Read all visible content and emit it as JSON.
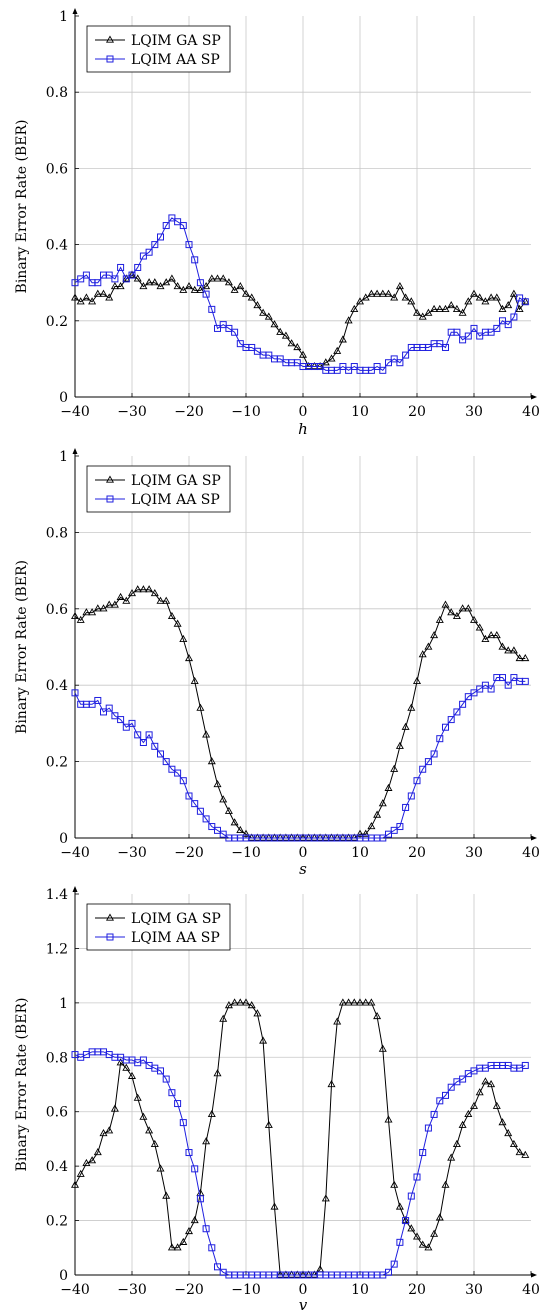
{
  "chart_data": [
    {
      "type": "line",
      "xlabel": "h",
      "ylabel": "Binary Error Rate (BER)",
      "xlim": [
        -40,
        40
      ],
      "ylim": [
        0,
        1
      ],
      "xticks": [
        -40,
        -30,
        -20,
        -10,
        0,
        10,
        20,
        30,
        40
      ],
      "yticks": [
        0,
        0.2,
        0.4,
        0.6,
        0.8,
        1
      ],
      "ytick_labels": [
        "0",
        "0.2",
        "0.4",
        "0.6",
        "0.8",
        "1"
      ],
      "grid": true,
      "legend_position": "top-left",
      "series": [
        {
          "name": "LQIM GA SP",
          "color": "#000000",
          "marker": "triangle",
          "x": [
            -40,
            -39,
            -38,
            -37,
            -36,
            -35,
            -34,
            -33,
            -32,
            -31,
            -30,
            -29,
            -28,
            -27,
            -26,
            -25,
            -24,
            -23,
            -22,
            -21,
            -20,
            -19,
            -18,
            -17,
            -16,
            -15,
            -14,
            -13,
            -12,
            -11,
            -10,
            -9,
            -8,
            -7,
            -6,
            -5,
            -4,
            -3,
            -2,
            -1,
            0,
            1,
            2,
            3,
            4,
            5,
            6,
            7,
            8,
            9,
            10,
            11,
            12,
            13,
            14,
            15,
            16,
            17,
            18,
            19,
            20,
            21,
            22,
            23,
            24,
            25,
            26,
            27,
            28,
            29,
            30,
            31,
            32,
            33,
            34,
            35,
            36,
            37,
            38,
            39
          ],
          "y": [
            0.26,
            0.25,
            0.26,
            0.25,
            0.27,
            0.27,
            0.26,
            0.29,
            0.29,
            0.31,
            0.32,
            0.31,
            0.29,
            0.3,
            0.3,
            0.29,
            0.3,
            0.31,
            0.29,
            0.28,
            0.29,
            0.28,
            0.28,
            0.29,
            0.31,
            0.31,
            0.31,
            0.3,
            0.28,
            0.29,
            0.27,
            0.26,
            0.24,
            0.22,
            0.21,
            0.19,
            0.17,
            0.16,
            0.14,
            0.13,
            0.11,
            0.08,
            0.08,
            0.08,
            0.09,
            0.1,
            0.12,
            0.15,
            0.2,
            0.23,
            0.25,
            0.26,
            0.27,
            0.27,
            0.27,
            0.27,
            0.26,
            0.29,
            0.26,
            0.25,
            0.22,
            0.21,
            0.22,
            0.23,
            0.23,
            0.23,
            0.24,
            0.23,
            0.22,
            0.25,
            0.27,
            0.26,
            0.25,
            0.26,
            0.26,
            0.23,
            0.24,
            0.27,
            0.23,
            0.25
          ]
        },
        {
          "name": "LQIM AA SP",
          "color": "#1f1fdf",
          "marker": "square",
          "x": [
            -40,
            -39,
            -38,
            -37,
            -36,
            -35,
            -34,
            -33,
            -32,
            -31,
            -30,
            -29,
            -28,
            -27,
            -26,
            -25,
            -24,
            -23,
            -22,
            -21,
            -20,
            -19,
            -18,
            -17,
            -16,
            -15,
            -14,
            -13,
            -12,
            -11,
            -10,
            -9,
            -8,
            -7,
            -6,
            -5,
            -4,
            -3,
            -2,
            -1,
            0,
            1,
            2,
            3,
            4,
            5,
            6,
            7,
            8,
            9,
            10,
            11,
            12,
            13,
            14,
            15,
            16,
            17,
            18,
            19,
            20,
            21,
            22,
            23,
            24,
            25,
            26,
            27,
            28,
            29,
            30,
            31,
            32,
            33,
            34,
            35,
            36,
            37,
            38,
            39
          ],
          "y": [
            0.3,
            0.31,
            0.32,
            0.3,
            0.3,
            0.32,
            0.32,
            0.31,
            0.34,
            0.31,
            0.32,
            0.34,
            0.37,
            0.38,
            0.4,
            0.42,
            0.45,
            0.47,
            0.46,
            0.45,
            0.4,
            0.36,
            0.3,
            0.27,
            0.23,
            0.18,
            0.19,
            0.18,
            0.17,
            0.14,
            0.13,
            0.13,
            0.12,
            0.11,
            0.11,
            0.1,
            0.1,
            0.09,
            0.09,
            0.09,
            0.08,
            0.08,
            0.08,
            0.08,
            0.07,
            0.07,
            0.07,
            0.08,
            0.07,
            0.08,
            0.07,
            0.07,
            0.07,
            0.08,
            0.07,
            0.09,
            0.1,
            0.09,
            0.11,
            0.13,
            0.13,
            0.13,
            0.13,
            0.14,
            0.14,
            0.13,
            0.17,
            0.17,
            0.15,
            0.16,
            0.18,
            0.16,
            0.17,
            0.17,
            0.18,
            0.2,
            0.19,
            0.21,
            0.26,
            0.25
          ]
        }
      ]
    },
    {
      "type": "line",
      "xlabel": "s",
      "ylabel": "Binary Error Rate (BER)",
      "xlim": [
        -40,
        40
      ],
      "ylim": [
        0,
        1
      ],
      "xticks": [
        -40,
        -30,
        -20,
        -10,
        0,
        10,
        20,
        30,
        40
      ],
      "yticks": [
        0,
        0.2,
        0.4,
        0.6,
        0.8,
        1
      ],
      "ytick_labels": [
        "0",
        "0.2",
        "0.4",
        "0.6",
        "0.8",
        "1"
      ],
      "grid": true,
      "legend_position": "top-left",
      "series": [
        {
          "name": "LQIM GA SP",
          "color": "#000000",
          "marker": "triangle",
          "x": [
            -40,
            -39,
            -38,
            -37,
            -36,
            -35,
            -34,
            -33,
            -32,
            -31,
            -30,
            -29,
            -28,
            -27,
            -26,
            -25,
            -24,
            -23,
            -22,
            -21,
            -20,
            -19,
            -18,
            -17,
            -16,
            -15,
            -14,
            -13,
            -12,
            -11,
            -10,
            -9,
            -8,
            -7,
            -6,
            -5,
            -4,
            -3,
            -2,
            -1,
            0,
            1,
            2,
            3,
            4,
            5,
            6,
            7,
            8,
            9,
            10,
            11,
            12,
            13,
            14,
            15,
            16,
            17,
            18,
            19,
            20,
            21,
            22,
            23,
            24,
            25,
            26,
            27,
            28,
            29,
            30,
            31,
            32,
            33,
            34,
            35,
            36,
            37,
            38,
            39
          ],
          "y": [
            0.58,
            0.57,
            0.59,
            0.59,
            0.6,
            0.6,
            0.61,
            0.61,
            0.63,
            0.62,
            0.64,
            0.65,
            0.65,
            0.65,
            0.64,
            0.62,
            0.62,
            0.58,
            0.56,
            0.52,
            0.47,
            0.41,
            0.34,
            0.27,
            0.2,
            0.14,
            0.1,
            0.07,
            0.04,
            0.02,
            0.01,
            0,
            0,
            0,
            0,
            0,
            0,
            0,
            0,
            0,
            0,
            0,
            0,
            0,
            0,
            0,
            0,
            0,
            0,
            0,
            0.01,
            0.01,
            0.03,
            0.06,
            0.09,
            0.13,
            0.18,
            0.24,
            0.29,
            0.34,
            0.41,
            0.48,
            0.5,
            0.53,
            0.57,
            0.61,
            0.59,
            0.58,
            0.6,
            0.6,
            0.57,
            0.55,
            0.52,
            0.53,
            0.53,
            0.5,
            0.49,
            0.49,
            0.47,
            0.47
          ]
        },
        {
          "name": "LQIM AA SP",
          "color": "#1f1fdf",
          "marker": "square",
          "x": [
            -40,
            -39,
            -38,
            -37,
            -36,
            -35,
            -34,
            -33,
            -32,
            -31,
            -30,
            -29,
            -28,
            -27,
            -26,
            -25,
            -24,
            -23,
            -22,
            -21,
            -20,
            -19,
            -18,
            -17,
            -16,
            -15,
            -14,
            -13,
            -12,
            -11,
            -10,
            -9,
            -8,
            -7,
            -6,
            -5,
            -4,
            -3,
            -2,
            -1,
            0,
            1,
            2,
            3,
            4,
            5,
            6,
            7,
            8,
            9,
            10,
            11,
            12,
            13,
            14,
            15,
            16,
            17,
            18,
            19,
            20,
            21,
            22,
            23,
            24,
            25,
            26,
            27,
            28,
            29,
            30,
            31,
            32,
            33,
            34,
            35,
            36,
            37,
            38,
            39
          ],
          "y": [
            0.38,
            0.35,
            0.35,
            0.35,
            0.36,
            0.33,
            0.34,
            0.32,
            0.31,
            0.29,
            0.3,
            0.27,
            0.25,
            0.27,
            0.24,
            0.22,
            0.2,
            0.18,
            0.17,
            0.15,
            0.11,
            0.09,
            0.07,
            0.05,
            0.03,
            0.02,
            0.01,
            0,
            0,
            0,
            0,
            0,
            0,
            0,
            0,
            0,
            0,
            0,
            0,
            0,
            0,
            0,
            0,
            0,
            0,
            0,
            0,
            0,
            0,
            0,
            0,
            0,
            0,
            0,
            0,
            0.01,
            0.02,
            0.03,
            0.08,
            0.11,
            0.15,
            0.18,
            0.2,
            0.22,
            0.26,
            0.29,
            0.31,
            0.33,
            0.35,
            0.37,
            0.38,
            0.39,
            0.4,
            0.39,
            0.42,
            0.42,
            0.4,
            0.42,
            0.41,
            0.41
          ]
        }
      ]
    },
    {
      "type": "line",
      "xlabel": "v",
      "ylabel": "Binary Error Rate (BER)",
      "xlim": [
        -40,
        40
      ],
      "ylim": [
        0,
        1.4
      ],
      "xticks": [
        -40,
        -30,
        -20,
        -10,
        0,
        10,
        20,
        30,
        40
      ],
      "yticks": [
        0,
        0.2,
        0.4,
        0.6,
        0.8,
        1,
        1.2,
        1.4
      ],
      "ytick_labels": [
        "0",
        "0.2",
        "0.4",
        "0.6",
        "0.8",
        "1",
        "1.2",
        "1.4"
      ],
      "grid": true,
      "legend_position": "top-left",
      "series": [
        {
          "name": "LQIM GA SP",
          "color": "#000000",
          "marker": "triangle",
          "x": [
            -40,
            -39,
            -38,
            -37,
            -36,
            -35,
            -34,
            -33,
            -32,
            -31,
            -30,
            -29,
            -28,
            -27,
            -26,
            -25,
            -24,
            -23,
            -22,
            -21,
            -20,
            -19,
            -18,
            -17,
            -16,
            -15,
            -14,
            -13,
            -12,
            -11,
            -10,
            -9,
            -8,
            -7,
            -6,
            -5,
            -4,
            -3,
            -2,
            -1,
            0,
            1,
            2,
            3,
            4,
            5,
            6,
            7,
            8,
            9,
            10,
            11,
            12,
            13,
            14,
            15,
            16,
            17,
            18,
            19,
            20,
            21,
            22,
            23,
            24,
            25,
            26,
            27,
            28,
            29,
            30,
            31,
            32,
            33,
            34,
            35,
            36,
            37,
            38,
            39
          ],
          "y": [
            0.33,
            0.37,
            0.41,
            0.42,
            0.45,
            0.52,
            0.53,
            0.61,
            0.78,
            0.76,
            0.73,
            0.65,
            0.58,
            0.53,
            0.48,
            0.39,
            0.29,
            0.1,
            0.1,
            0.12,
            0.16,
            0.2,
            0.3,
            0.49,
            0.59,
            0.74,
            0.94,
            0.99,
            1,
            1,
            1,
            0.99,
            0.96,
            0.86,
            0.55,
            0.25,
            0,
            0,
            0,
            0,
            0,
            0,
            0,
            0.02,
            0.28,
            0.7,
            0.93,
            1,
            1,
            1,
            1,
            1,
            1,
            0.95,
            0.83,
            0.57,
            0.33,
            0.25,
            0.2,
            0.17,
            0.14,
            0.11,
            0.1,
            0.15,
            0.21,
            0.33,
            0.43,
            0.48,
            0.55,
            0.59,
            0.62,
            0.67,
            0.71,
            0.7,
            0.62,
            0.56,
            0.52,
            0.48,
            0.45,
            0.44
          ]
        },
        {
          "name": "LQIM AA SP",
          "color": "#1f1fdf",
          "marker": "square",
          "x": [
            -40,
            -39,
            -38,
            -37,
            -36,
            -35,
            -34,
            -33,
            -32,
            -31,
            -30,
            -29,
            -28,
            -27,
            -26,
            -25,
            -24,
            -23,
            -22,
            -21,
            -20,
            -19,
            -18,
            -17,
            -16,
            -15,
            -14,
            -13,
            -12,
            -11,
            -10,
            -9,
            -8,
            -7,
            -6,
            -5,
            -4,
            -3,
            -2,
            -1,
            0,
            1,
            2,
            3,
            4,
            5,
            6,
            7,
            8,
            9,
            10,
            11,
            12,
            13,
            14,
            15,
            16,
            17,
            18,
            19,
            20,
            21,
            22,
            23,
            24,
            25,
            26,
            27,
            28,
            29,
            30,
            31,
            32,
            33,
            34,
            35,
            36,
            37,
            38,
            39
          ],
          "y": [
            0.81,
            0.8,
            0.81,
            0.82,
            0.82,
            0.82,
            0.81,
            0.8,
            0.8,
            0.79,
            0.79,
            0.78,
            0.79,
            0.77,
            0.76,
            0.75,
            0.72,
            0.67,
            0.63,
            0.56,
            0.45,
            0.39,
            0.28,
            0.17,
            0.1,
            0.03,
            0.01,
            0,
            0,
            0,
            0,
            0,
            0,
            0,
            0,
            0,
            0,
            0,
            0,
            0,
            0,
            0,
            0,
            0,
            0,
            0,
            0,
            0,
            0,
            0,
            0,
            0,
            0,
            0,
            0,
            0.01,
            0.04,
            0.12,
            0.2,
            0.29,
            0.36,
            0.45,
            0.54,
            0.59,
            0.64,
            0.66,
            0.69,
            0.71,
            0.72,
            0.74,
            0.75,
            0.76,
            0.76,
            0.77,
            0.77,
            0.77,
            0.77,
            0.76,
            0.76,
            0.77
          ]
        }
      ]
    }
  ]
}
